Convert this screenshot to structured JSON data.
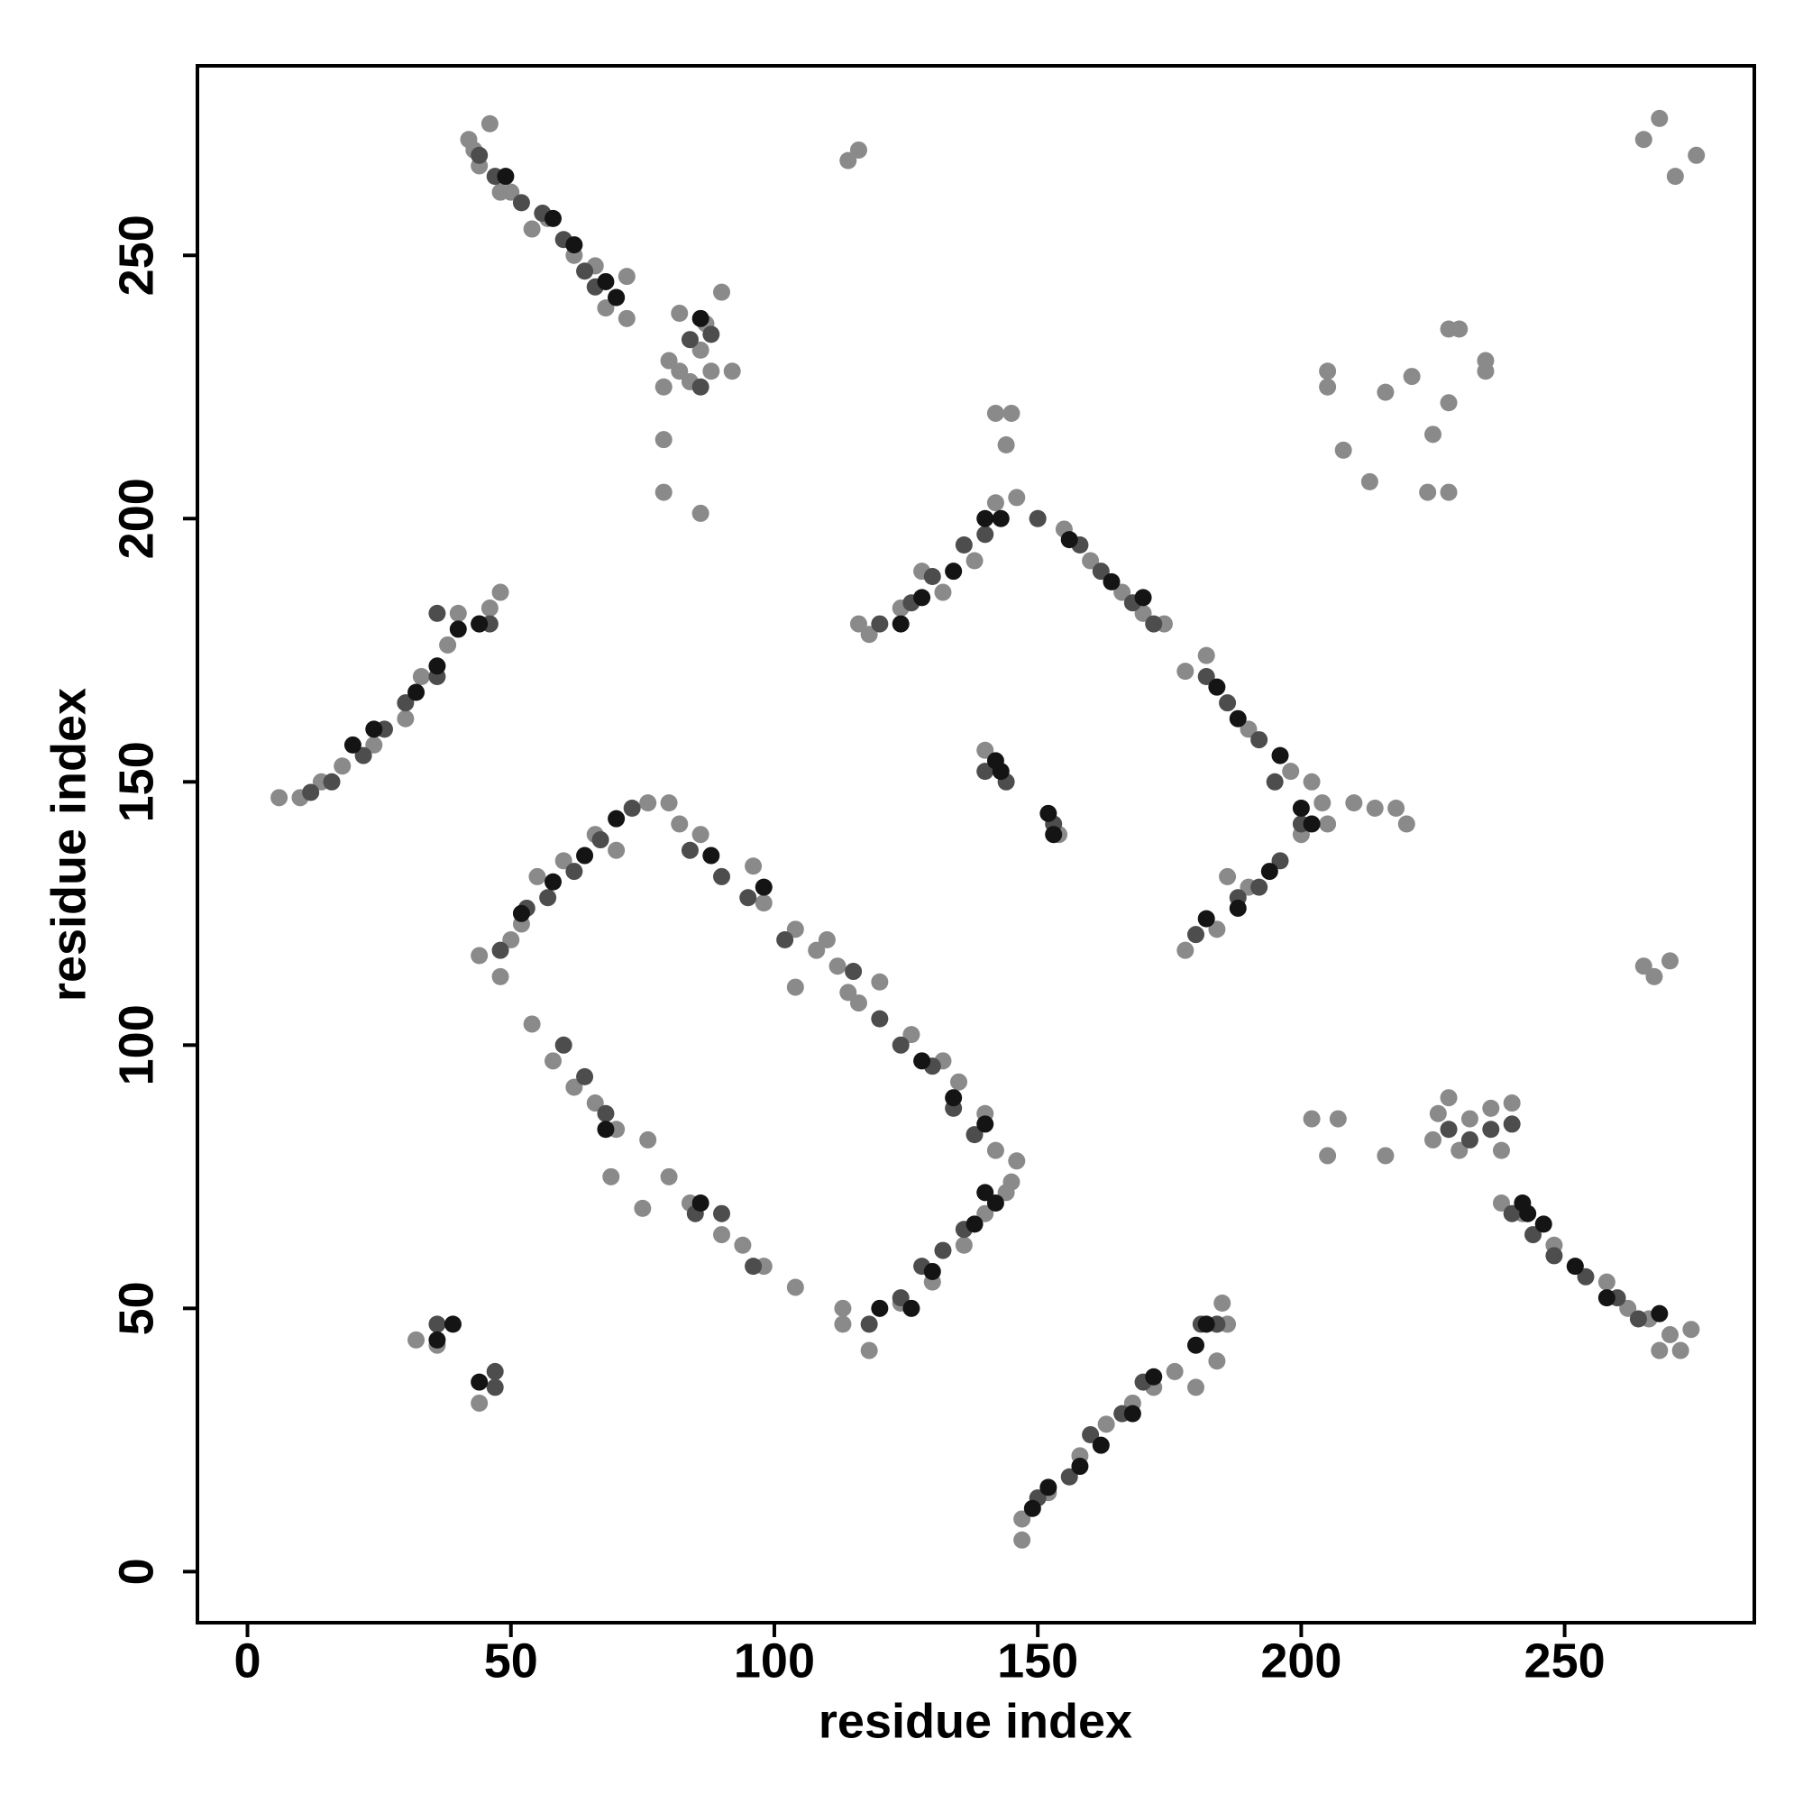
{
  "chart_data": {
    "type": "scatter",
    "xlabel": "residue index",
    "ylabel": "residue index",
    "xlim": [
      -9.5,
      286
    ],
    "ylim": [
      -9.7,
      286
    ],
    "xticks": [
      0,
      50,
      100,
      150,
      200,
      250
    ],
    "yticks": [
      0,
      50,
      100,
      150,
      200,
      250
    ],
    "series": [
      {
        "color": "#8a8a8a",
        "x": [
          42,
          43,
          46,
          44,
          48,
          50,
          54,
          57,
          62,
          66,
          72,
          72,
          68,
          6,
          10,
          14,
          18,
          24,
          30,
          33,
          38,
          40,
          48,
          46,
          79,
          80,
          82,
          84,
          86,
          88,
          90,
          92,
          79,
          79,
          86,
          82,
          87,
          114,
          116,
          142,
          145,
          144,
          44,
          48,
          50,
          52,
          55,
          60,
          66,
          70,
          76,
          80,
          82,
          86,
          96,
          98,
          104,
          108,
          110,
          112,
          104,
          114,
          116,
          120,
          126,
          132,
          135,
          140,
          142,
          146,
          145,
          144,
          54,
          58,
          62,
          66,
          70,
          76,
          80,
          84,
          90,
          94,
          98,
          104,
          69,
          75,
          113,
          113,
          118,
          124,
          130,
          136,
          140,
          116,
          118,
          124,
          128,
          132,
          138,
          142,
          146,
          150,
          155,
          160,
          166,
          170,
          174,
          178,
          182,
          190,
          198,
          202,
          204,
          205,
          200,
          190,
          186,
          178,
          184,
          140,
          154,
          210,
          214,
          218,
          220,
          205,
          205,
          208,
          213,
          216,
          221,
          225,
          224,
          228,
          228,
          228,
          230,
          235,
          235,
          265,
          268,
          271,
          275,
          265,
          270,
          267,
          202,
          205,
          207,
          216,
          225,
          228,
          230,
          232,
          236,
          240,
          238,
          226,
          147,
          147,
          152,
          158,
          163,
          168,
          172,
          176,
          180,
          185,
          186,
          184,
          238,
          242,
          248,
          252,
          258,
          262,
          266,
          270,
          274,
          268,
          272,
          32,
          36,
          44
        ],
        "y": [
          272,
          270,
          275,
          267,
          262,
          262,
          255,
          257,
          250,
          248,
          246,
          238,
          240,
          147,
          147,
          150,
          153,
          157,
          162,
          170,
          176,
          182,
          186,
          183,
          225,
          230,
          228,
          226,
          232,
          228,
          243,
          228,
          215,
          205,
          201,
          239,
          237,
          268,
          270,
          220,
          220,
          214,
          117,
          113,
          120,
          123,
          132,
          135,
          140,
          137,
          146,
          146,
          142,
          140,
          134,
          127,
          122,
          118,
          120,
          115,
          111,
          110,
          108,
          112,
          102,
          97,
          93,
          87,
          80,
          78,
          74,
          72,
          104,
          97,
          92,
          89,
          84,
          82,
          75,
          70,
          64,
          62,
          58,
          54,
          75,
          69,
          50,
          47,
          42,
          51,
          55,
          62,
          68,
          180,
          178,
          183,
          190,
          186,
          192,
          203,
          204,
          200,
          198,
          192,
          186,
          182,
          180,
          171,
          174,
          160,
          152,
          150,
          146,
          142,
          140,
          130,
          132,
          118,
          122,
          156,
          140,
          146,
          145,
          145,
          142,
          228,
          225,
          213,
          207,
          224,
          227,
          216,
          205,
          205,
          222,
          236,
          236,
          230,
          228,
          272,
          276,
          265,
          269,
          115,
          116,
          113,
          86,
          79,
          86,
          79,
          82,
          90,
          80,
          86,
          88,
          89,
          80,
          87,
          6,
          10,
          15,
          22,
          28,
          32,
          35,
          38,
          35,
          51,
          47,
          40,
          70,
          68,
          62,
          58,
          55,
          50,
          48,
          45,
          46,
          42,
          42,
          44,
          43,
          32
        ]
      },
      {
        "color": "#4d4d4d",
        "x": [
          44,
          47,
          52,
          56,
          60,
          64,
          66,
          70,
          84,
          88,
          86,
          12,
          16,
          22,
          26,
          30,
          36,
          36,
          44,
          46,
          48,
          53,
          57,
          62,
          67,
          73,
          84,
          90,
          95,
          102,
          115,
          120,
          124,
          130,
          134,
          138,
          136,
          132,
          128,
          124,
          118,
          60,
          64,
          68,
          85,
          90,
          96,
          120,
          126,
          130,
          136,
          140,
          150,
          158,
          162,
          168,
          172,
          182,
          186,
          192,
          195,
          200,
          196,
          192,
          188,
          180,
          140,
          144,
          153,
          36,
          47,
          47,
          150,
          156,
          160,
          166,
          170,
          181,
          184,
          240,
          244,
          248,
          254,
          260,
          264,
          240,
          236,
          228,
          232
        ],
        "y": [
          269,
          265,
          260,
          258,
          253,
          247,
          244,
          242,
          234,
          235,
          225,
          148,
          150,
          155,
          160,
          165,
          170,
          182,
          180,
          180,
          118,
          126,
          128,
          133,
          139,
          145,
          137,
          132,
          128,
          120,
          114,
          105,
          100,
          96,
          88,
          83,
          65,
          61,
          58,
          52,
          47,
          100,
          94,
          87,
          68,
          68,
          58,
          180,
          184,
          189,
          195,
          197,
          200,
          195,
          190,
          184,
          180,
          170,
          165,
          158,
          150,
          142,
          135,
          130,
          128,
          121,
          152,
          150,
          142,
          47,
          38,
          35,
          14,
          18,
          26,
          30,
          36,
          47,
          47,
          68,
          64,
          60,
          56,
          52,
          48,
          85,
          84,
          84,
          82
        ]
      },
      {
        "color": "#141414",
        "x": [
          49,
          58,
          62,
          68,
          70,
          86,
          20,
          24,
          32,
          36,
          40,
          44,
          52,
          58,
          64,
          70,
          88,
          98,
          128,
          134,
          140,
          142,
          138,
          130,
          126,
          120,
          140,
          68,
          86,
          124,
          128,
          134,
          140,
          143,
          156,
          164,
          170,
          184,
          188,
          196,
          200,
          202,
          194,
          188,
          182,
          142,
          143,
          152,
          153,
          36,
          39,
          44,
          149,
          152,
          158,
          162,
          168,
          172,
          180,
          182,
          242,
          246,
          252,
          258,
          268,
          243
        ],
        "y": [
          265,
          257,
          252,
          245,
          242,
          238,
          157,
          160,
          167,
          172,
          179,
          180,
          125,
          131,
          136,
          143,
          136,
          130,
          97,
          90,
          85,
          70,
          66,
          57,
          50,
          50,
          72,
          84,
          70,
          180,
          185,
          190,
          200,
          200,
          196,
          188,
          185,
          168,
          162,
          155,
          145,
          142,
          133,
          126,
          124,
          154,
          152,
          144,
          140,
          44,
          47,
          36,
          12,
          16,
          20,
          24,
          30,
          37,
          43,
          47,
          70,
          66,
          58,
          52,
          49,
          68
        ]
      }
    ]
  }
}
